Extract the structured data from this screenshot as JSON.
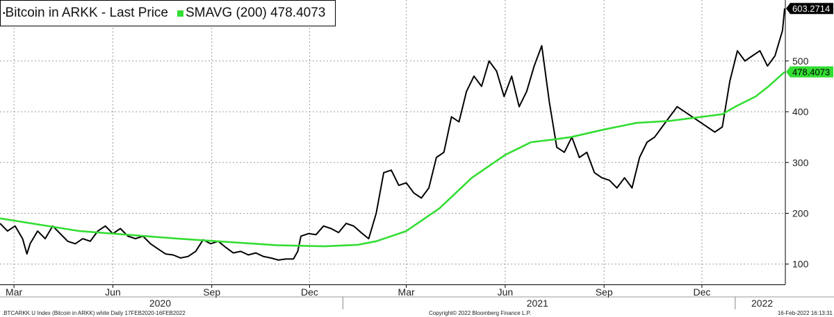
{
  "chart_data": {
    "type": "line",
    "legend": [
      {
        "label": "Bitcoin in ARKK - Last Price",
        "color": "#000000"
      },
      {
        "label": "SMAVG (200) 478.4073",
        "color": "#33dd33"
      }
    ],
    "ylim": [
      60,
      620
    ],
    "yticks": [
      100,
      200,
      300,
      400,
      500
    ],
    "xlim": [
      "2020-02-17",
      "2022-02-16"
    ],
    "month_ticks": [
      {
        "label": "Mar",
        "date": "2020-03-01"
      },
      {
        "label": "Jun",
        "date": "2020-06-01"
      },
      {
        "label": "Sep",
        "date": "2020-09-01"
      },
      {
        "label": "Dec",
        "date": "2020-12-01"
      },
      {
        "label": "Mar",
        "date": "2021-03-01"
      },
      {
        "label": "Jun",
        "date": "2021-06-01"
      },
      {
        "label": "Sep",
        "date": "2021-09-01"
      },
      {
        "label": "Dec",
        "date": "2021-12-01"
      }
    ],
    "year_labels": [
      {
        "label": "2020",
        "date": "2020-07-15"
      },
      {
        "label": "2021",
        "date": "2021-07-01"
      },
      {
        "label": "2022",
        "date": "2022-01-26"
      }
    ],
    "year_dividers": [
      "2021-01-01",
      "2022-01-01"
    ],
    "series": [
      {
        "name": "Bitcoin in ARKK - Last Price",
        "color": "#000000",
        "last_value_label": "603.2714",
        "points": [
          [
            "2020-02-17",
            180
          ],
          [
            "2020-02-24",
            165
          ],
          [
            "2020-03-02",
            175
          ],
          [
            "2020-03-09",
            150
          ],
          [
            "2020-03-13",
            120
          ],
          [
            "2020-03-16",
            140
          ],
          [
            "2020-03-23",
            165
          ],
          [
            "2020-03-30",
            150
          ],
          [
            "2020-04-06",
            175
          ],
          [
            "2020-04-13",
            160
          ],
          [
            "2020-04-20",
            145
          ],
          [
            "2020-04-27",
            140
          ],
          [
            "2020-05-04",
            150
          ],
          [
            "2020-05-11",
            145
          ],
          [
            "2020-05-18",
            165
          ],
          [
            "2020-05-25",
            175
          ],
          [
            "2020-06-01",
            160
          ],
          [
            "2020-06-08",
            170
          ],
          [
            "2020-06-15",
            155
          ],
          [
            "2020-06-22",
            150
          ],
          [
            "2020-06-29",
            155
          ],
          [
            "2020-07-06",
            140
          ],
          [
            "2020-07-13",
            130
          ],
          [
            "2020-07-20",
            120
          ],
          [
            "2020-07-27",
            118
          ],
          [
            "2020-08-03",
            112
          ],
          [
            "2020-08-10",
            115
          ],
          [
            "2020-08-17",
            125
          ],
          [
            "2020-08-24",
            148
          ],
          [
            "2020-08-31",
            140
          ],
          [
            "2020-09-07",
            145
          ],
          [
            "2020-09-14",
            133
          ],
          [
            "2020-09-21",
            122
          ],
          [
            "2020-09-28",
            125
          ],
          [
            "2020-10-05",
            118
          ],
          [
            "2020-10-12",
            122
          ],
          [
            "2020-10-19",
            115
          ],
          [
            "2020-10-26",
            112
          ],
          [
            "2020-11-02",
            108
          ],
          [
            "2020-11-09",
            110
          ],
          [
            "2020-11-16",
            110
          ],
          [
            "2020-11-20",
            125
          ],
          [
            "2020-11-23",
            155
          ],
          [
            "2020-11-30",
            160
          ],
          [
            "2020-12-07",
            158
          ],
          [
            "2020-12-14",
            175
          ],
          [
            "2020-12-21",
            170
          ],
          [
            "2020-12-28",
            162
          ],
          [
            "2021-01-04",
            180
          ],
          [
            "2021-01-11",
            175
          ],
          [
            "2021-01-18",
            162
          ],
          [
            "2021-01-25",
            150
          ],
          [
            "2021-02-01",
            200
          ],
          [
            "2021-02-08",
            280
          ],
          [
            "2021-02-15",
            285
          ],
          [
            "2021-02-22",
            255
          ],
          [
            "2021-03-01",
            260
          ],
          [
            "2021-03-08",
            240
          ],
          [
            "2021-03-15",
            230
          ],
          [
            "2021-03-22",
            250
          ],
          [
            "2021-03-29",
            310
          ],
          [
            "2021-04-05",
            320
          ],
          [
            "2021-04-12",
            390
          ],
          [
            "2021-04-19",
            380
          ],
          [
            "2021-04-26",
            440
          ],
          [
            "2021-05-03",
            470
          ],
          [
            "2021-05-10",
            450
          ],
          [
            "2021-05-17",
            500
          ],
          [
            "2021-05-24",
            480
          ],
          [
            "2021-05-31",
            430
          ],
          [
            "2021-06-07",
            470
          ],
          [
            "2021-06-14",
            410
          ],
          [
            "2021-06-21",
            440
          ],
          [
            "2021-06-28",
            490
          ],
          [
            "2021-07-05",
            530
          ],
          [
            "2021-07-12",
            420
          ],
          [
            "2021-07-19",
            330
          ],
          [
            "2021-07-26",
            320
          ],
          [
            "2021-08-02",
            350
          ],
          [
            "2021-08-09",
            310
          ],
          [
            "2021-08-16",
            320
          ],
          [
            "2021-08-23",
            280
          ],
          [
            "2021-08-30",
            270
          ],
          [
            "2021-09-06",
            265
          ],
          [
            "2021-09-13",
            250
          ],
          [
            "2021-09-20",
            270
          ],
          [
            "2021-09-27",
            250
          ],
          [
            "2021-10-04",
            310
          ],
          [
            "2021-10-11",
            340
          ],
          [
            "2021-10-18",
            350
          ],
          [
            "2021-10-25",
            370
          ],
          [
            "2021-11-01",
            390
          ],
          [
            "2021-11-08",
            410
          ],
          [
            "2021-11-15",
            400
          ],
          [
            "2021-11-22",
            390
          ],
          [
            "2021-11-29",
            380
          ],
          [
            "2021-12-06",
            370
          ],
          [
            "2021-12-13",
            360
          ],
          [
            "2021-12-20",
            370
          ],
          [
            "2021-12-27",
            460
          ],
          [
            "2022-01-03",
            520
          ],
          [
            "2022-01-10",
            500
          ],
          [
            "2022-01-17",
            510
          ],
          [
            "2022-01-24",
            520
          ],
          [
            "2022-01-31",
            490
          ],
          [
            "2022-02-07",
            510
          ],
          [
            "2022-02-14",
            560
          ],
          [
            "2022-02-16",
            603.27
          ]
        ]
      },
      {
        "name": "SMAVG (200) 478.4073",
        "color": "#33dd33",
        "last_value_label": "478.4073",
        "points": [
          [
            "2020-02-17",
            190
          ],
          [
            "2020-05-01",
            165
          ],
          [
            "2020-08-01",
            150
          ],
          [
            "2020-11-01",
            137
          ],
          [
            "2020-12-15",
            135
          ],
          [
            "2021-01-15",
            138
          ],
          [
            "2021-02-01",
            145
          ],
          [
            "2021-03-01",
            165
          ],
          [
            "2021-04-01",
            210
          ],
          [
            "2021-05-01",
            270
          ],
          [
            "2021-06-01",
            315
          ],
          [
            "2021-06-25",
            340
          ],
          [
            "2021-07-15",
            345
          ],
          [
            "2021-08-01",
            350
          ],
          [
            "2021-09-01",
            365
          ],
          [
            "2021-10-01",
            378
          ],
          [
            "2021-11-01",
            382
          ],
          [
            "2021-12-01",
            390
          ],
          [
            "2021-12-20",
            395
          ],
          [
            "2022-01-01",
            410
          ],
          [
            "2022-01-20",
            430
          ],
          [
            "2022-02-01",
            450
          ],
          [
            "2022-02-16",
            478.41
          ]
        ]
      }
    ]
  },
  "footer": {
    "left": ".BTCARKK U Index (Bitcoin in ARKK) white  Daily 17FEB2020-16FEB2022",
    "center": "Copyright© 2022 Bloomberg Finance L.P.",
    "right": "16-Feb-2022 16:13:31"
  }
}
